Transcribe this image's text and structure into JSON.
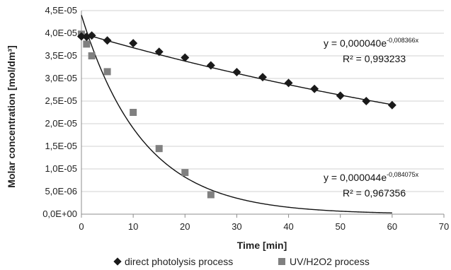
{
  "chart_data": {
    "type": "scatter",
    "xlabel": "Time [min]",
    "ylabel": "Molar concentration [mol/dm³]",
    "xlim": [
      0,
      70
    ],
    "ylim": [
      0,
      4.5e-05
    ],
    "x_ticks": [
      "0",
      "10",
      "20",
      "30",
      "40",
      "50",
      "60",
      "70"
    ],
    "y_ticks": [
      "0,0E+00",
      "5,0E-06",
      "1,0E-05",
      "1,5E-05",
      "2,0E-05",
      "2,5E-05",
      "3,0E-05",
      "3,5E-05",
      "4,0E-05",
      "4,5E-05"
    ],
    "grid": "horizontal",
    "legend_position": "bottom",
    "series": [
      {
        "name": "direct photolysis process",
        "marker": "diamond",
        "color": "#1a1a1a",
        "x": [
          0,
          1,
          2,
          5,
          10,
          15,
          20,
          25,
          30,
          35,
          40,
          45,
          50,
          55,
          60
        ],
        "y": [
          3.93e-05,
          3.92e-05,
          3.95e-05,
          3.84e-05,
          3.78e-05,
          3.59e-05,
          3.46e-05,
          3.29e-05,
          3.14e-05,
          3.03e-05,
          2.9e-05,
          2.77e-05,
          2.62e-05,
          2.5e-05,
          2.41e-05
        ]
      },
      {
        "name": "UV/H2O2 process",
        "marker": "square",
        "color": "#808080",
        "x": [
          0,
          1,
          2,
          5,
          10,
          15,
          20,
          25
        ],
        "y": [
          3.98e-05,
          3.76e-05,
          3.5e-05,
          3.15e-05,
          2.25e-05,
          1.45e-05,
          9.2e-06,
          4.3e-06
        ]
      }
    ],
    "trendlines": [
      {
        "series": "direct photolysis process",
        "a": 4e-05,
        "k": 0.008366,
        "x_range": [
          0,
          60
        ],
        "equation_base": "y = 0,000040e",
        "equation_exp": "-0,008366x",
        "r2": "R² = 0,993233"
      },
      {
        "series": "UV/H2O2 process",
        "a": 4.4e-05,
        "k": 0.084075,
        "x_range": [
          0,
          60
        ],
        "equation_base": "y = 0,000044e",
        "equation_exp": "-0,084075x",
        "r2": "R² = 0,967356"
      }
    ]
  }
}
